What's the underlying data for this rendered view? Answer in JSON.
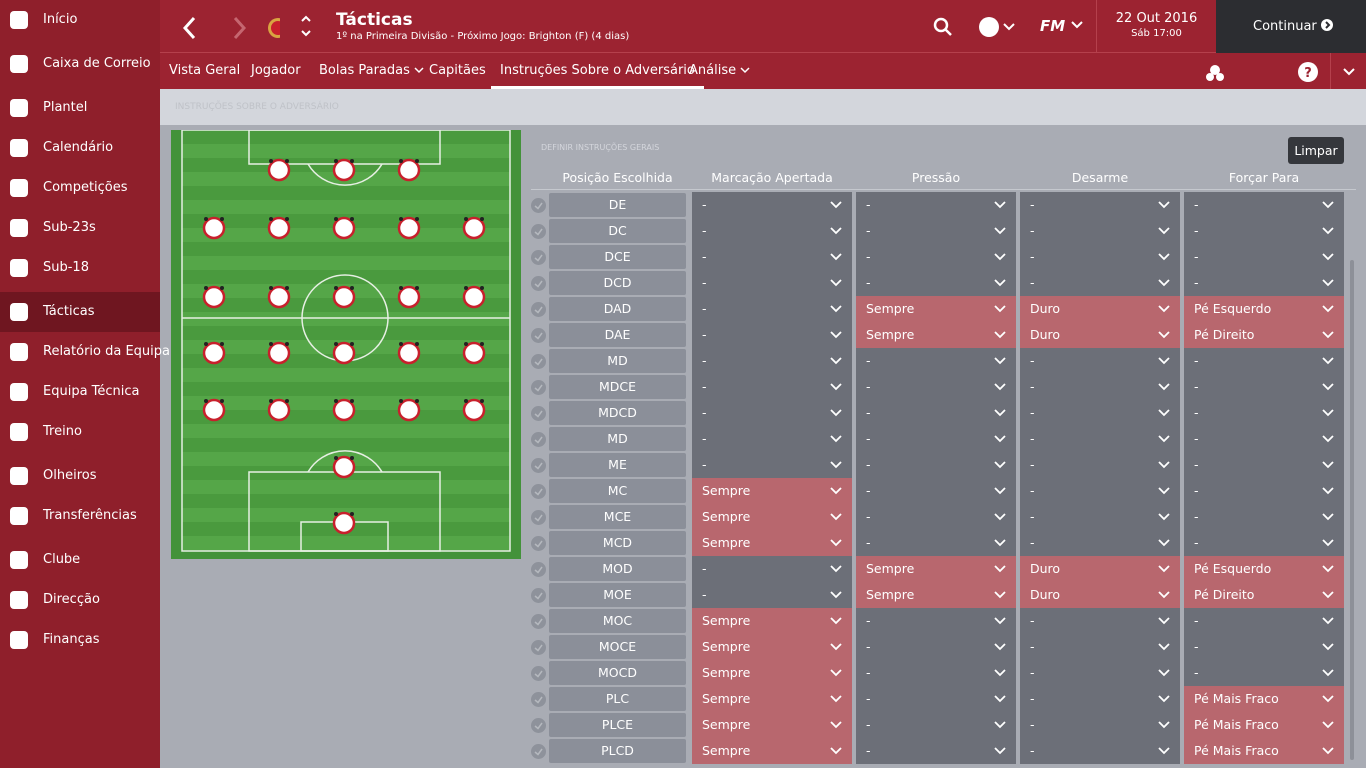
{
  "sidebar": {
    "items": [
      "Início",
      "Caixa de Correio",
      "Plantel",
      "Calendário",
      "Competições",
      "Sub-23s",
      "Sub-18",
      "Tácticas",
      "Relatório da Equipa",
      "Equipa Técnica",
      "Treino",
      "Olheiros",
      "Transferências",
      "Clube",
      "Direcção",
      "Finanças"
    ]
  },
  "header": {
    "title": "Tácticas",
    "subtitle": "1º na Primeira Divisão - Próximo Jogo: Brighton (F) (4 dias)",
    "logo": "FM",
    "date": "22 Out 2016",
    "time": "Sáb 17:00",
    "continue": "Continuar"
  },
  "tabs": [
    "Vista Geral",
    "Jogador",
    "Bolas Paradas",
    "Capitães",
    "Instruções Sobre o Adversário",
    "Análise"
  ],
  "breadcrumb": "INSTRUÇÕES SOBRE O ADVERSÁRIO",
  "section_label": "DEFINIR INSTRUÇÕES GERAIS",
  "clear_button": "Limpar",
  "table": {
    "columns": [
      "Posição Escolhida",
      "Marcação Apertada",
      "Pressão",
      "Desarme",
      "Forçar Para"
    ],
    "rows": [
      [
        "DE",
        "-",
        "-",
        "-",
        "-"
      ],
      [
        "DC",
        "-",
        "-",
        "-",
        "-"
      ],
      [
        "DCE",
        "-",
        "-",
        "-",
        "-"
      ],
      [
        "DCD",
        "-",
        "-",
        "-",
        "-"
      ],
      [
        "DAD",
        "-",
        "Sempre",
        "Duro",
        "Pé Esquerdo"
      ],
      [
        "DAE",
        "-",
        "Sempre",
        "Duro",
        "Pé Direito"
      ],
      [
        "MD",
        "-",
        "-",
        "-",
        "-"
      ],
      [
        "MDCE",
        "-",
        "-",
        "-",
        "-"
      ],
      [
        "MDCD",
        "-",
        "-",
        "-",
        "-"
      ],
      [
        "MD",
        "-",
        "-",
        "-",
        "-"
      ],
      [
        "ME",
        "-",
        "-",
        "-",
        "-"
      ],
      [
        "MC",
        "Sempre",
        "-",
        "-",
        "-"
      ],
      [
        "MCE",
        "Sempre",
        "-",
        "-",
        "-"
      ],
      [
        "MCD",
        "Sempre",
        "-",
        "-",
        "-"
      ],
      [
        "MOD",
        "-",
        "Sempre",
        "Duro",
        "Pé Esquerdo"
      ],
      [
        "MOE",
        "-",
        "Sempre",
        "Duro",
        "Pé Direito"
      ],
      [
        "MOC",
        "Sempre",
        "-",
        "-",
        "-"
      ],
      [
        "MOCE",
        "Sempre",
        "-",
        "-",
        "-"
      ],
      [
        "MOCD",
        "Sempre",
        "-",
        "-",
        "-"
      ],
      [
        "PLC",
        "Sempre",
        "-",
        "-",
        "Pé Mais Fraco"
      ],
      [
        "PLCE",
        "Sempre",
        "-",
        "-",
        "Pé Mais Fraco"
      ],
      [
        "PLCD",
        "Sempre",
        "-",
        "-",
        "Pé Mais Fraco"
      ]
    ]
  }
}
